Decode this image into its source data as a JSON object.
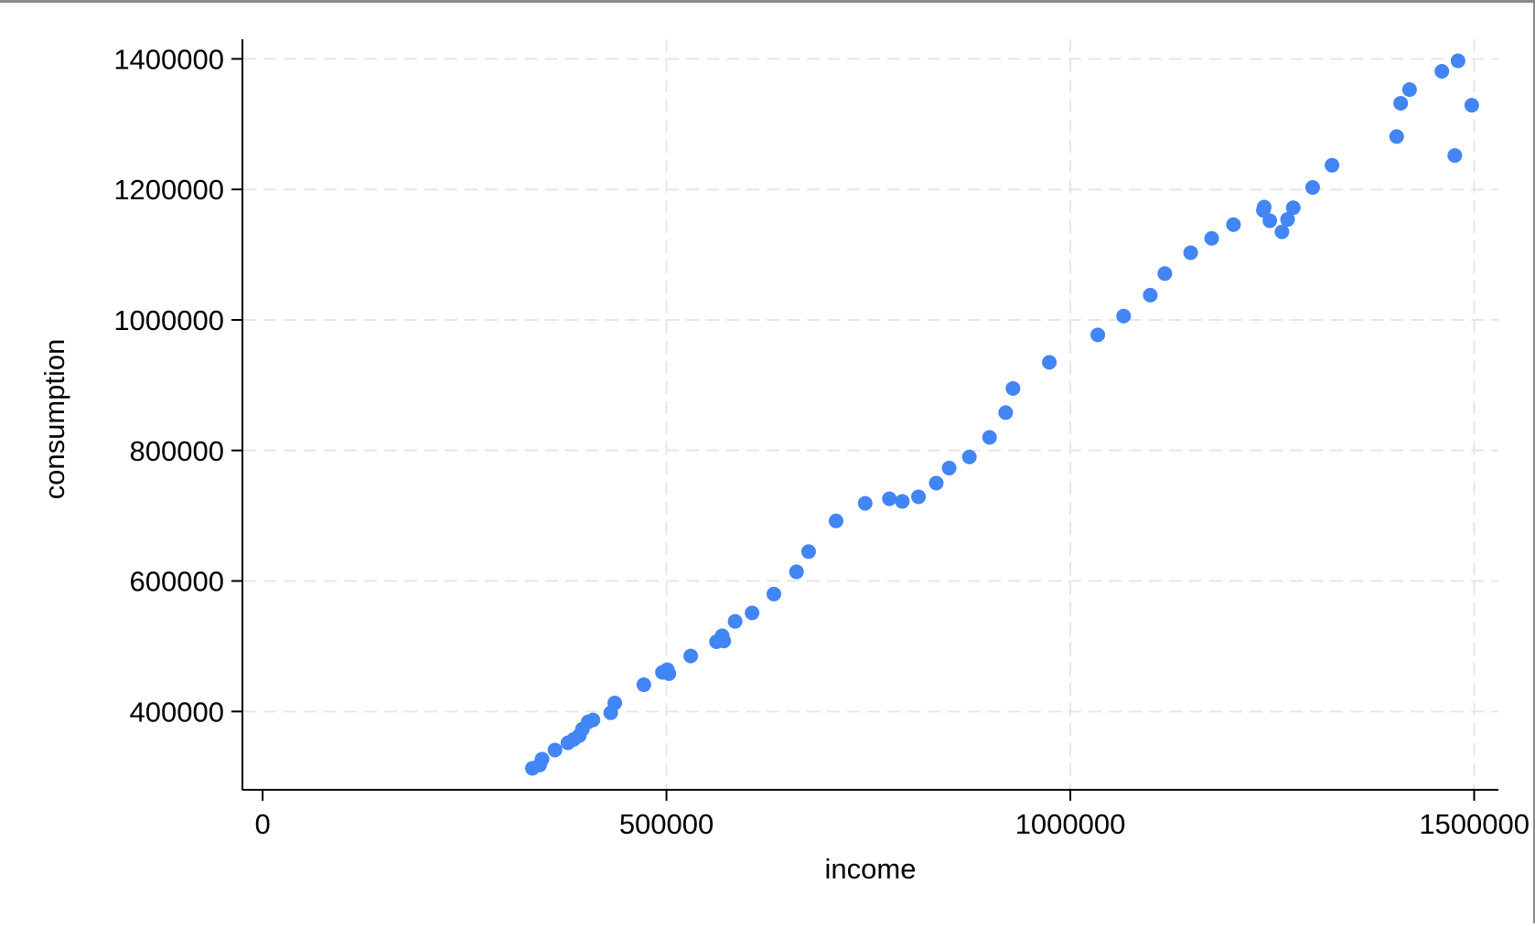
{
  "chart_data": {
    "type": "scatter",
    "title": "",
    "xlabel": "income",
    "ylabel": "consumption",
    "xlim": [
      -25000,
      1530000
    ],
    "ylim": [
      280000,
      1430000
    ],
    "x_ticks": [
      0,
      500000,
      1000000,
      1500000
    ],
    "x_tick_labels": [
      "0",
      "500000",
      "1000000",
      "1500000"
    ],
    "y_ticks": [
      400000,
      600000,
      800000,
      1000000,
      1200000,
      1400000
    ],
    "y_tick_labels": [
      "400000",
      "600000",
      "800000",
      "1000000",
      "1200000",
      "1400000"
    ],
    "grid": true,
    "legend": "none",
    "colors": {
      "marker": "#4285f4",
      "grid": "#e6e6e6",
      "axis": "#000000"
    },
    "points": [
      [
        334000,
        313000
      ],
      [
        343000,
        318000
      ],
      [
        346000,
        327000
      ],
      [
        362000,
        341000
      ],
      [
        378000,
        352000
      ],
      [
        385000,
        357000
      ],
      [
        392000,
        363000
      ],
      [
        396000,
        373000
      ],
      [
        403000,
        384000
      ],
      [
        409000,
        387000
      ],
      [
        431000,
        398000
      ],
      [
        436000,
        413000
      ],
      [
        472000,
        441000
      ],
      [
        495000,
        460000
      ],
      [
        501000,
        464000
      ],
      [
        503000,
        458000
      ],
      [
        530000,
        485000
      ],
      [
        562000,
        507000
      ],
      [
        569000,
        516000
      ],
      [
        571000,
        508000
      ],
      [
        585000,
        538000
      ],
      [
        606000,
        551000
      ],
      [
        633000,
        580000
      ],
      [
        661000,
        614000
      ],
      [
        676000,
        645000
      ],
      [
        710000,
        692000
      ],
      [
        746000,
        719000
      ],
      [
        776000,
        726000
      ],
      [
        792000,
        722000
      ],
      [
        812000,
        729000
      ],
      [
        834000,
        750000
      ],
      [
        850000,
        773000
      ],
      [
        875000,
        790000
      ],
      [
        900000,
        820000
      ],
      [
        920000,
        858000
      ],
      [
        929000,
        895000
      ],
      [
        974000,
        935000
      ],
      [
        1034000,
        977000
      ],
      [
        1066000,
        1006000
      ],
      [
        1099000,
        1038000
      ],
      [
        1117000,
        1071000
      ],
      [
        1149000,
        1103000
      ],
      [
        1175000,
        1125000
      ],
      [
        1202000,
        1146000
      ],
      [
        1239000,
        1168000
      ],
      [
        1240000,
        1173000
      ],
      [
        1247000,
        1152000
      ],
      [
        1262000,
        1135000
      ],
      [
        1269000,
        1154000
      ],
      [
        1276000,
        1172000
      ],
      [
        1300000,
        1203000
      ],
      [
        1324000,
        1237000
      ],
      [
        1404000,
        1281000
      ],
      [
        1409000,
        1332000
      ],
      [
        1420000,
        1353000
      ],
      [
        1460000,
        1381000
      ],
      [
        1476000,
        1252000
      ],
      [
        1480000,
        1397000
      ],
      [
        1497000,
        1329000
      ]
    ]
  }
}
